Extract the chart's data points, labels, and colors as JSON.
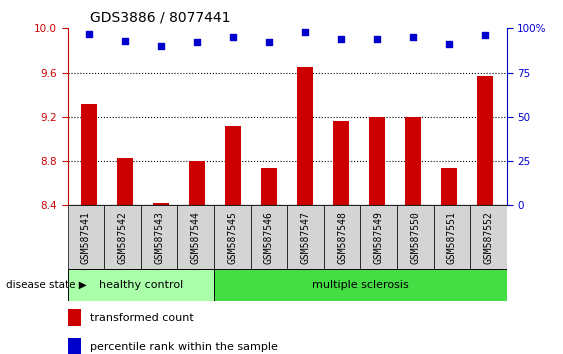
{
  "title": "GDS3886 / 8077441",
  "samples": [
    "GSM587541",
    "GSM587542",
    "GSM587543",
    "GSM587544",
    "GSM587545",
    "GSM587546",
    "GSM587547",
    "GSM587548",
    "GSM587549",
    "GSM587550",
    "GSM587551",
    "GSM587552"
  ],
  "bar_values": [
    9.32,
    8.83,
    8.42,
    8.8,
    9.12,
    8.74,
    9.65,
    9.16,
    9.2,
    9.2,
    8.74,
    9.57
  ],
  "dot_values": [
    97,
    93,
    90,
    92,
    95,
    92,
    98,
    94,
    94,
    95,
    91,
    96
  ],
  "bar_color": "#cc0000",
  "dot_color": "#0000cc",
  "ylim_left": [
    8.4,
    10.0
  ],
  "ylim_right": [
    0,
    100
  ],
  "yticks_left": [
    8.4,
    8.8,
    9.2,
    9.6,
    10.0
  ],
  "yticks_right": [
    0,
    25,
    50,
    75,
    100
  ],
  "ytick_labels_right": [
    "0",
    "25",
    "50",
    "75",
    "100%"
  ],
  "grid_values": [
    8.8,
    9.2,
    9.6
  ],
  "healthy_count": 4,
  "ms_count": 8,
  "healthy_label": "healthy control",
  "ms_label": "multiple sclerosis",
  "healthy_color": "#aaffaa",
  "ms_color": "#44dd44",
  "disease_label": "disease state",
  "legend_bar_label": "transformed count",
  "legend_dot_label": "percentile rank within the sample",
  "cell_bg_color": "#d4d4d4",
  "plot_bg_color": "#ffffff",
  "title_fontsize": 10,
  "tick_fontsize": 7.5,
  "bar_width": 0.45,
  "dot_size": 18
}
